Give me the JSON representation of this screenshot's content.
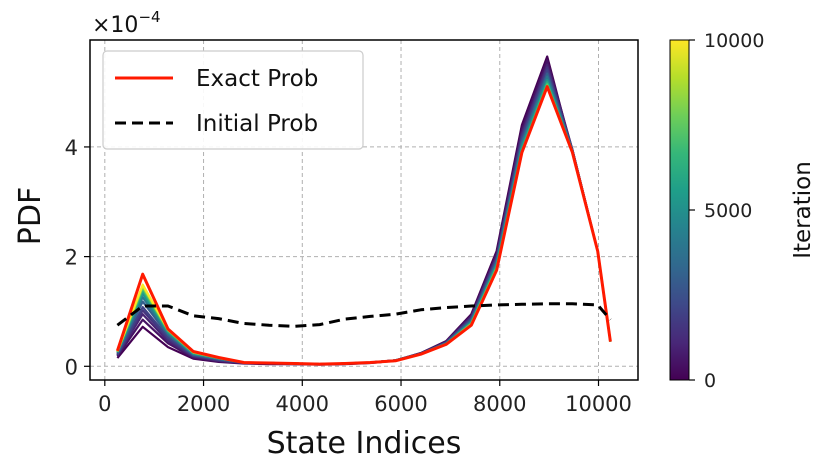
{
  "chart_data": {
    "type": "line",
    "xlabel": "State Indices",
    "ylabel": "PDF",
    "y_multiplier": "×10",
    "y_exponent": "−4",
    "xlim": [
      -300,
      10800
    ],
    "ylim": [
      -0.25,
      5.95
    ],
    "x_ticks": [
      0,
      2000,
      4000,
      6000,
      8000,
      10000
    ],
    "x_tick_labels": [
      "0",
      "2000",
      "4000",
      "6000",
      "8000",
      "10000"
    ],
    "y_ticks": [
      0,
      2,
      4
    ],
    "y_tick_labels": [
      "0",
      "2",
      "4"
    ],
    "grid": true,
    "legend_position": "top-left",
    "x": [
      256,
      768,
      1280,
      1792,
      2304,
      2816,
      3328,
      3840,
      4352,
      4864,
      5376,
      5888,
      6400,
      6912,
      7424,
      7936,
      8448,
      8960,
      9472,
      9984,
      10240
    ],
    "series": [
      {
        "name": "Exact Prob",
        "style": "solid",
        "color": "#ff1a00",
        "values": [
          0.28,
          1.68,
          0.68,
          0.27,
          0.16,
          0.07,
          0.06,
          0.05,
          0.04,
          0.05,
          0.07,
          0.1,
          0.22,
          0.4,
          0.75,
          1.75,
          3.9,
          5.1,
          3.9,
          2.1,
          0.45
        ]
      },
      {
        "name": "Initial Prob",
        "style": "dashed",
        "color": "#000000",
        "values": [
          0.75,
          1.1,
          1.1,
          0.92,
          0.87,
          0.78,
          0.75,
          0.73,
          0.76,
          0.86,
          0.91,
          0.95,
          1.03,
          1.07,
          1.1,
          1.12,
          1.13,
          1.14,
          1.14,
          1.12,
          0.85
        ]
      }
    ],
    "iterations": [
      {
        "iteration": 0,
        "values": [
          0.15,
          0.72,
          0.35,
          0.14,
          0.08,
          0.05,
          0.04,
          0.04,
          0.03,
          0.04,
          0.06,
          0.1,
          0.24,
          0.46,
          0.95,
          2.1,
          4.4,
          5.65,
          3.9,
          2.1,
          0.45
        ]
      },
      {
        "iteration": 500,
        "values": [
          0.18,
          0.85,
          0.42,
          0.16,
          0.09,
          0.06,
          0.05,
          0.04,
          0.04,
          0.05,
          0.07,
          0.11,
          0.24,
          0.45,
          0.92,
          2.05,
          4.32,
          5.58,
          3.95,
          2.1,
          0.45
        ]
      },
      {
        "iteration": 1000,
        "values": [
          0.2,
          0.95,
          0.46,
          0.18,
          0.1,
          0.06,
          0.05,
          0.05,
          0.04,
          0.05,
          0.07,
          0.11,
          0.23,
          0.44,
          0.9,
          2.0,
          4.25,
          5.5,
          3.95,
          2.1,
          0.45
        ]
      },
      {
        "iteration": 1500,
        "values": [
          0.21,
          1.02,
          0.5,
          0.19,
          0.11,
          0.06,
          0.05,
          0.05,
          0.04,
          0.05,
          0.07,
          0.11,
          0.23,
          0.43,
          0.88,
          1.98,
          4.2,
          5.45,
          3.94,
          2.1,
          0.45
        ]
      },
      {
        "iteration": 2000,
        "values": [
          0.22,
          1.08,
          0.53,
          0.2,
          0.12,
          0.07,
          0.06,
          0.05,
          0.04,
          0.05,
          0.07,
          0.11,
          0.23,
          0.43,
          0.86,
          1.95,
          4.16,
          5.4,
          3.94,
          2.1,
          0.45
        ]
      },
      {
        "iteration": 3000,
        "values": [
          0.24,
          1.18,
          0.57,
          0.21,
          0.13,
          0.07,
          0.06,
          0.05,
          0.04,
          0.05,
          0.07,
          0.11,
          0.23,
          0.42,
          0.84,
          1.92,
          4.1,
          5.34,
          3.93,
          2.1,
          0.45
        ]
      },
      {
        "iteration": 4000,
        "values": [
          0.25,
          1.26,
          0.6,
          0.22,
          0.14,
          0.07,
          0.06,
          0.05,
          0.04,
          0.05,
          0.07,
          0.11,
          0.23,
          0.42,
          0.82,
          1.88,
          4.05,
          5.28,
          3.92,
          2.1,
          0.45
        ]
      },
      {
        "iteration": 5000,
        "values": [
          0.26,
          1.33,
          0.62,
          0.23,
          0.14,
          0.07,
          0.06,
          0.05,
          0.04,
          0.05,
          0.07,
          0.1,
          0.22,
          0.41,
          0.8,
          1.85,
          4.0,
          5.22,
          3.92,
          2.1,
          0.45
        ]
      },
      {
        "iteration": 6000,
        "values": [
          0.26,
          1.38,
          0.64,
          0.24,
          0.15,
          0.07,
          0.06,
          0.05,
          0.04,
          0.05,
          0.07,
          0.1,
          0.22,
          0.41,
          0.79,
          1.82,
          3.96,
          5.18,
          3.91,
          2.1,
          0.45
        ]
      },
      {
        "iteration": 7000,
        "values": [
          0.27,
          1.42,
          0.65,
          0.25,
          0.15,
          0.07,
          0.06,
          0.05,
          0.04,
          0.05,
          0.07,
          0.1,
          0.22,
          0.4,
          0.78,
          1.8,
          3.93,
          5.15,
          3.91,
          2.1,
          0.45
        ]
      },
      {
        "iteration": 8000,
        "values": [
          0.27,
          1.45,
          0.66,
          0.25,
          0.15,
          0.07,
          0.06,
          0.05,
          0.04,
          0.05,
          0.07,
          0.1,
          0.22,
          0.4,
          0.77,
          1.78,
          3.91,
          5.12,
          3.91,
          2.1,
          0.45
        ]
      },
      {
        "iteration": 9000,
        "values": [
          0.27,
          1.47,
          0.67,
          0.26,
          0.16,
          0.07,
          0.06,
          0.05,
          0.04,
          0.05,
          0.07,
          0.1,
          0.22,
          0.4,
          0.76,
          1.77,
          3.9,
          5.11,
          3.9,
          2.1,
          0.45
        ]
      },
      {
        "iteration": 10000,
        "values": [
          0.28,
          1.49,
          0.67,
          0.26,
          0.16,
          0.07,
          0.06,
          0.05,
          0.04,
          0.05,
          0.07,
          0.1,
          0.22,
          0.4,
          0.76,
          1.76,
          3.9,
          5.1,
          3.9,
          2.1,
          0.45
        ]
      }
    ],
    "colorbar": {
      "label": "Iteration",
      "min": 0,
      "max": 10000,
      "ticks": [
        0,
        5000,
        10000
      ],
      "tick_labels": [
        "0",
        "5000",
        "10000"
      ],
      "colormap": "viridis",
      "stops": [
        "#440154",
        "#482878",
        "#3e4989",
        "#31688e",
        "#26828e",
        "#1f9e89",
        "#35b779",
        "#6ece58",
        "#b5de2b",
        "#fde725"
      ]
    }
  }
}
